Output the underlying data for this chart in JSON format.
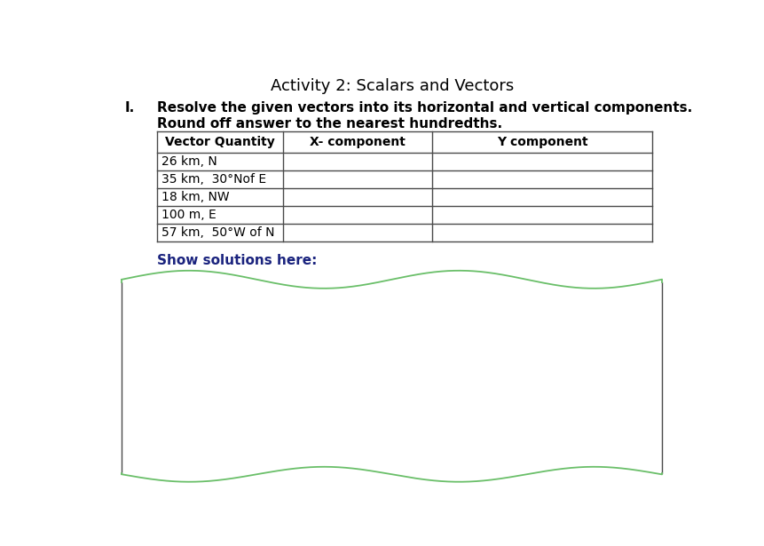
{
  "title": "Activity 2: Scalars and Vectors",
  "title_fontsize": 13,
  "title_color": "#000000",
  "roman_numeral": "I.",
  "instruction_line1": "Resolve the given vectors into its horizontal and vertical components.",
  "instruction_line2": "Round off answer to the nearest hundredths.",
  "instruction_fontsize": 11,
  "table_header": [
    "Vector Quantity",
    "X- component",
    "Y component"
  ],
  "table_rows": [
    "26 km, N",
    "35 km,  30°Nof E",
    "18 km, NW",
    "100 m, E",
    "57 km,  50°W of N"
  ],
  "show_solutions_text": "Show solutions here:",
  "show_solutions_fontsize": 11,
  "table_text_fontsize": 10,
  "background_color": "#ffffff",
  "table_border_color": "#4a4a4a",
  "wave_box_color": "#6abf69",
  "solutions_text_color": "#1a237e"
}
